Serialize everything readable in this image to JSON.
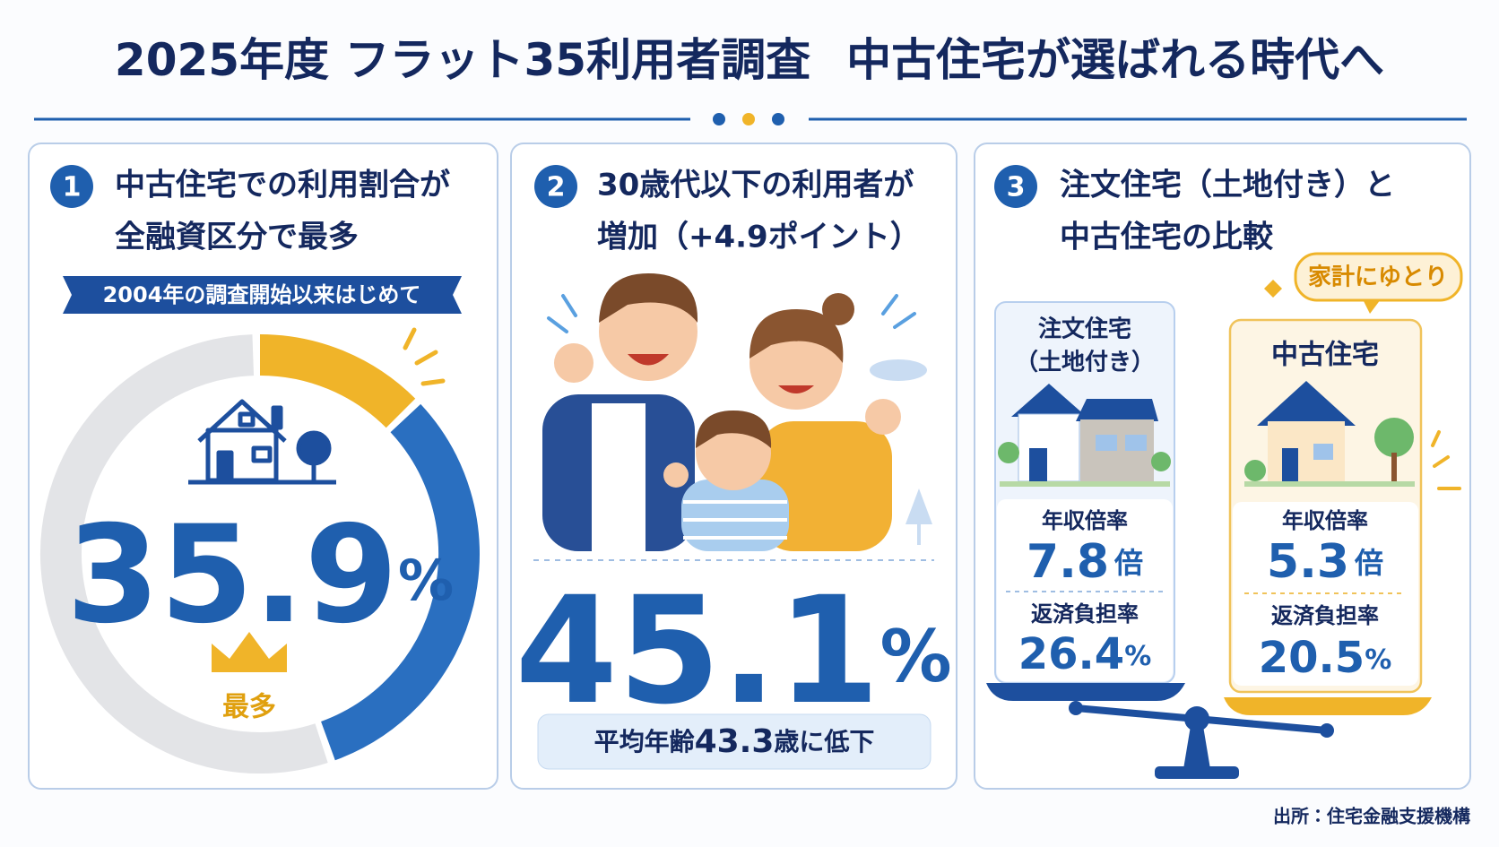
{
  "header": {
    "title_part1": "2025年度 フラット35利用者調査",
    "title_part2": "中古住宅が選ばれる時代へ"
  },
  "panels": [
    {
      "number": "1",
      "heading": [
        "中古住宅での利用割合が",
        "全融資区分で最多"
      ],
      "ribbon": "2004年の調査開始以来はじめて",
      "value": "35.9",
      "unit": "%",
      "badge": "最多"
    },
    {
      "number": "2",
      "heading": [
        "30歳代以下の利用者が",
        "増加（+4.9ポイント）"
      ],
      "value": "45.1",
      "unit": "%",
      "note": {
        "before": "平均年齢",
        "value": "43.3",
        "after": "歳に低下"
      }
    },
    {
      "number": "3",
      "heading": [
        "注文住宅（土地付き）と",
        "中古住宅の比較"
      ],
      "bubble": "家計にゆとり",
      "cards": [
        {
          "title": [
            "注文住宅",
            "（土地付き）"
          ],
          "metrics": [
            {
              "label": "年収倍率",
              "value": "7.8",
              "unit": "倍"
            },
            {
              "label": "返済負担率",
              "value": "26.4",
              "unit": "%"
            }
          ]
        },
        {
          "title": [
            "中古住宅"
          ],
          "metrics": [
            {
              "label": "年収倍率",
              "value": "5.3",
              "unit": "倍"
            },
            {
              "label": "返済負担率",
              "value": "20.5",
              "unit": "%"
            }
          ]
        }
      ]
    }
  ],
  "source": "出所：住宅金融支援機構"
}
